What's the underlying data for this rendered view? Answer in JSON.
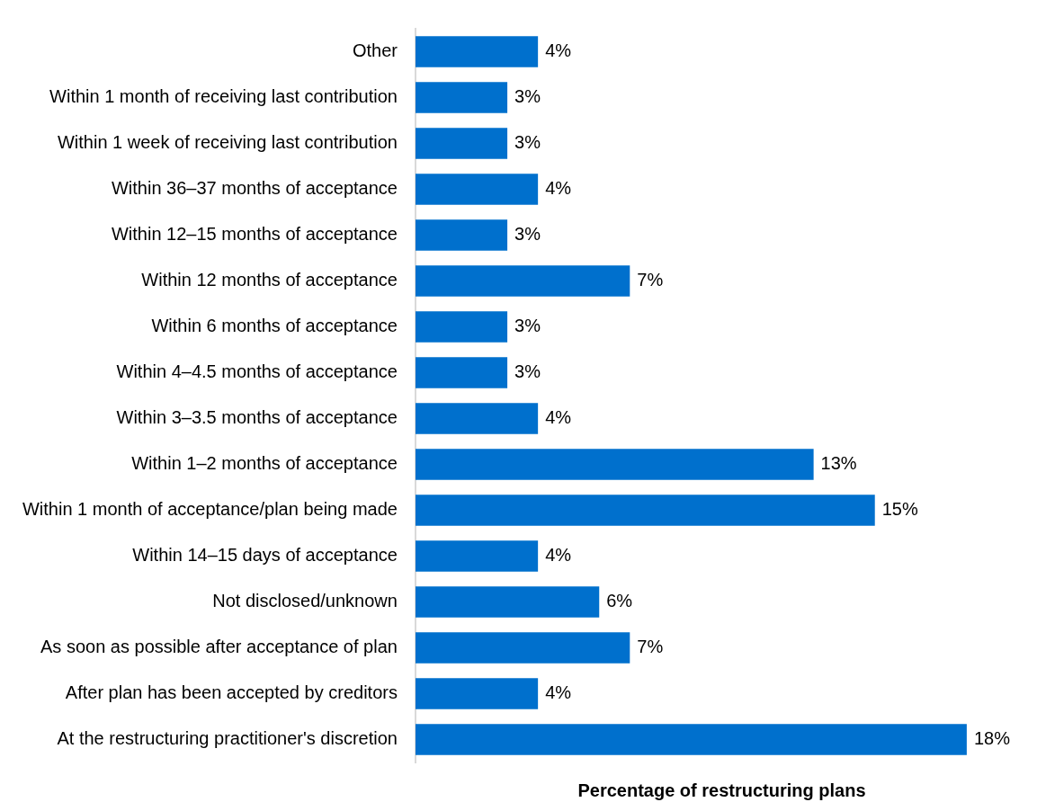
{
  "chart_data": {
    "type": "bar",
    "orientation": "horizontal",
    "xlabel": "Percentage of restructuring plans",
    "color": "#0070cd",
    "categories": [
      "Other",
      "Within 1 month of receiving last contribution",
      "Within 1 week of receiving last contribution",
      "Within 36–37 months of acceptance",
      "Within 12–15 months of acceptance",
      "Within 12 months of acceptance",
      "Within 6 months of acceptance",
      "Within 4–4.5 months of acceptance",
      "Within 3–3.5 months of acceptance",
      "Within 1–2 months of acceptance",
      "Within 1 month of acceptance/plan being made",
      "Within 14–15 days of acceptance",
      "Not disclosed/unknown",
      "As soon as possible after acceptance of plan",
      "After plan has been accepted by creditors",
      "At the restructuring practitioner's discretion"
    ],
    "values": [
      4,
      3,
      3,
      4,
      3,
      7,
      3,
      3,
      4,
      13,
      15,
      4,
      6,
      7,
      4,
      18
    ],
    "value_labels": [
      "4%",
      "3%",
      "3%",
      "4%",
      "3%",
      "7%",
      "3%",
      "3%",
      "4%",
      "13%",
      "15%",
      "4%",
      "6%",
      "7%",
      "4%",
      "18%"
    ]
  }
}
